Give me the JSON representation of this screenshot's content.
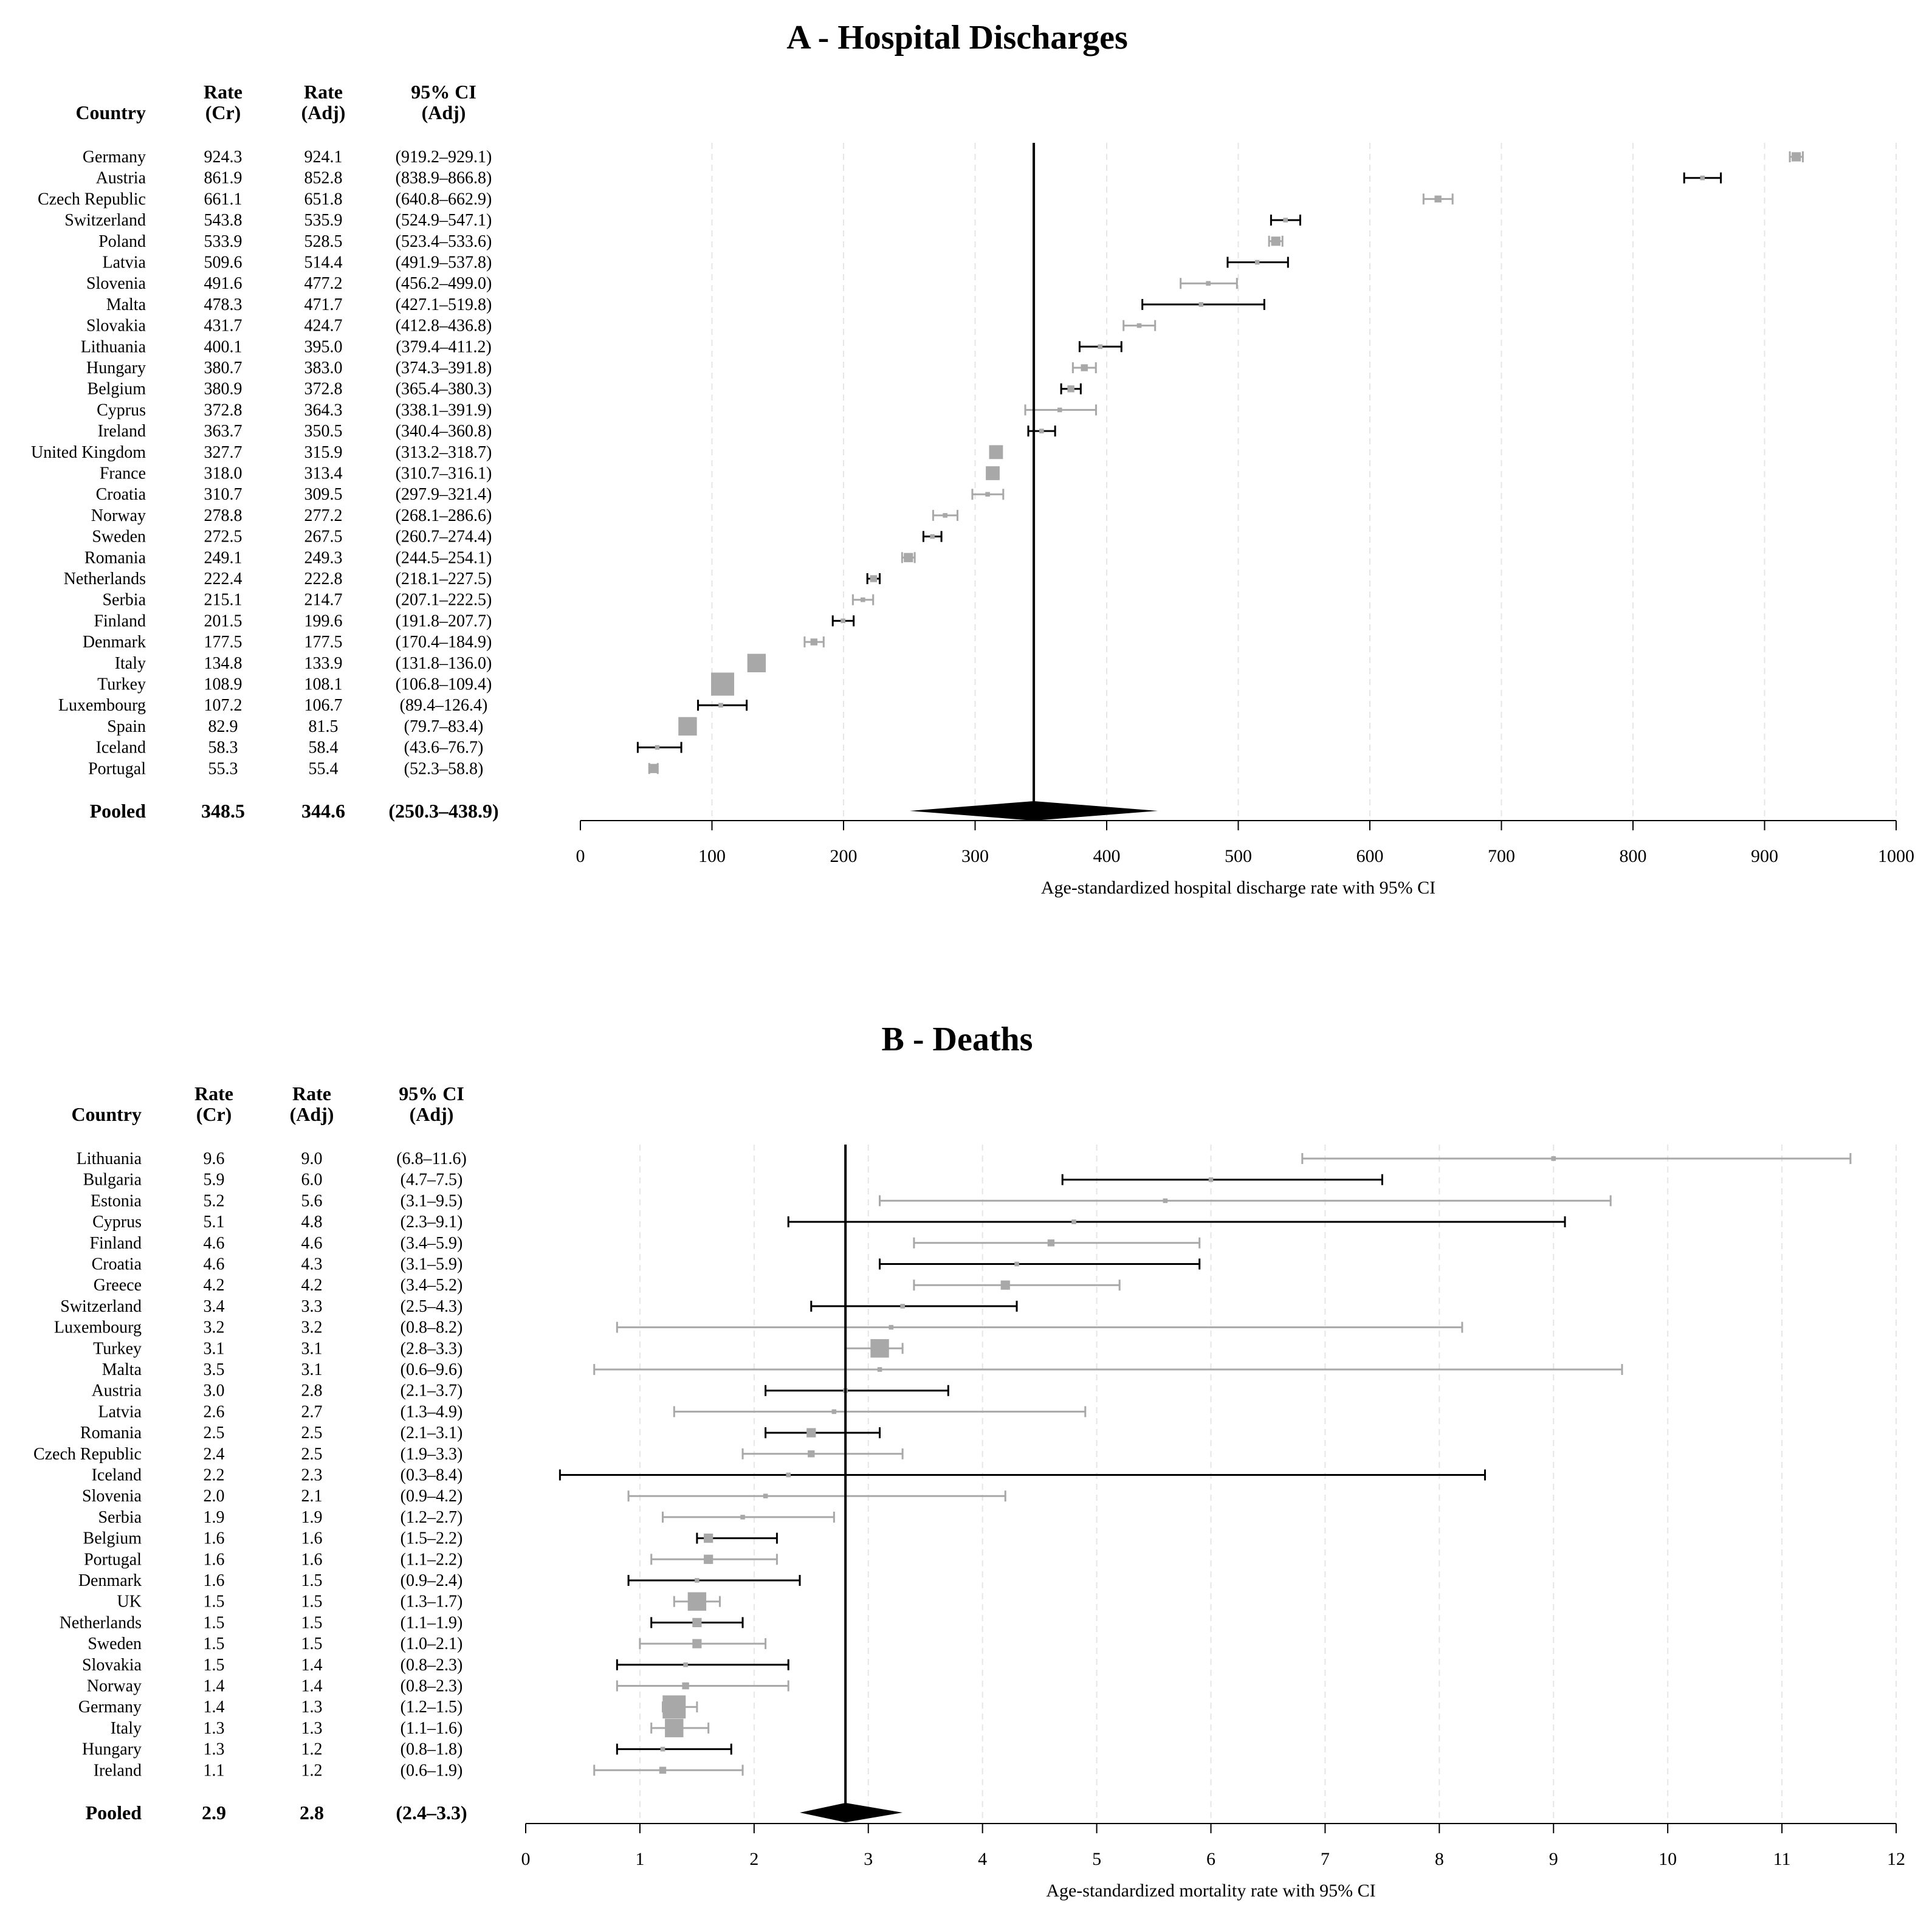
{
  "chart_data": [
    {
      "type": "forest",
      "title": "A - Hospital Discharges",
      "columns": {
        "country": "Country",
        "rate_cr": [
          "Rate",
          "(Cr)"
        ],
        "rate_adj": [
          "Rate",
          "(Adj)"
        ],
        "ci": [
          "95% CI",
          "(Adj)"
        ]
      },
      "xlabel": "Age-standardized hospital discharge rate with 95% CI",
      "xlim": [
        0,
        1000
      ],
      "ticks": [
        0,
        100,
        200,
        300,
        400,
        500,
        600,
        700,
        800,
        900,
        1000
      ],
      "rows": [
        {
          "country": "Germany",
          "cr": "924.3",
          "adj": "924.1",
          "ci": "(919.2–929.1)",
          "est": 924.1,
          "lo": 919.2,
          "hi": 929.1,
          "color": "gray",
          "size": 4
        },
        {
          "country": "Austria",
          "cr": "861.9",
          "adj": "852.8",
          "ci": "(838.9–866.8)",
          "est": 852.8,
          "lo": 838.9,
          "hi": 866.8,
          "color": "black",
          "size": 2
        },
        {
          "country": "Czech Republic",
          "cr": "661.1",
          "adj": "651.8",
          "ci": "(640.8–662.9)",
          "est": 651.8,
          "lo": 640.8,
          "hi": 662.9,
          "color": "gray",
          "size": 3
        },
        {
          "country": "Switzerland",
          "cr": "543.8",
          "adj": "535.9",
          "ci": "(524.9–547.1)",
          "est": 535.9,
          "lo": 524.9,
          "hi": 547.1,
          "color": "black",
          "size": 2
        },
        {
          "country": "Poland",
          "cr": "533.9",
          "adj": "528.5",
          "ci": "(523.4–533.6)",
          "est": 528.5,
          "lo": 523.4,
          "hi": 533.6,
          "color": "gray",
          "size": 4
        },
        {
          "country": "Latvia",
          "cr": "509.6",
          "adj": "514.4",
          "ci": "(491.9–537.8)",
          "est": 514.4,
          "lo": 491.9,
          "hi": 537.8,
          "color": "black",
          "size": 2
        },
        {
          "country": "Slovenia",
          "cr": "491.6",
          "adj": "477.2",
          "ci": "(456.2–499.0)",
          "est": 477.2,
          "lo": 456.2,
          "hi": 499.0,
          "color": "gray",
          "size": 2
        },
        {
          "country": "Malta",
          "cr": "478.3",
          "adj": "471.7",
          "ci": "(427.1–519.8)",
          "est": 471.7,
          "lo": 427.1,
          "hi": 519.8,
          "color": "black",
          "size": 2
        },
        {
          "country": "Slovakia",
          "cr": "431.7",
          "adj": "424.7",
          "ci": "(412.8–436.8)",
          "est": 424.7,
          "lo": 412.8,
          "hi": 436.8,
          "color": "gray",
          "size": 2
        },
        {
          "country": "Lithuania",
          "cr": "400.1",
          "adj": "395.0",
          "ci": "(379.4–411.2)",
          "est": 395.0,
          "lo": 379.4,
          "hi": 411.2,
          "color": "black",
          "size": 2
        },
        {
          "country": "Hungary",
          "cr": "380.7",
          "adj": "383.0",
          "ci": "(374.3–391.8)",
          "est": 383.0,
          "lo": 374.3,
          "hi": 391.8,
          "color": "gray",
          "size": 3
        },
        {
          "country": "Belgium",
          "cr": "380.9",
          "adj": "372.8",
          "ci": "(365.4–380.3)",
          "est": 372.8,
          "lo": 365.4,
          "hi": 380.3,
          "color": "black",
          "size": 3
        },
        {
          "country": "Cyprus",
          "cr": "372.8",
          "adj": "364.3",
          "ci": "(338.1–391.9)",
          "est": 364.3,
          "lo": 338.1,
          "hi": 391.9,
          "color": "gray",
          "size": 2
        },
        {
          "country": "Ireland",
          "cr": "363.7",
          "adj": "350.5",
          "ci": "(340.4–360.8)",
          "est": 350.5,
          "lo": 340.4,
          "hi": 360.8,
          "color": "black",
          "size": 2
        },
        {
          "country": "United Kingdom",
          "cr": "327.7",
          "adj": "315.9",
          "ci": "(313.2–318.7)",
          "est": 315.9,
          "lo": 313.2,
          "hi": 318.7,
          "color": "gray",
          "size": 6
        },
        {
          "country": "France",
          "cr": "318.0",
          "adj": "313.4",
          "ci": "(310.7–316.1)",
          "est": 313.4,
          "lo": 310.7,
          "hi": 316.1,
          "color": "black",
          "size": 6
        },
        {
          "country": "Croatia",
          "cr": "310.7",
          "adj": "309.5",
          "ci": "(297.9–321.4)",
          "est": 309.5,
          "lo": 297.9,
          "hi": 321.4,
          "color": "gray",
          "size": 2
        },
        {
          "country": "Norway",
          "cr": "278.8",
          "adj": "277.2",
          "ci": "(268.1–286.6)",
          "est": 277.2,
          "lo": 268.1,
          "hi": 286.6,
          "color": "gray",
          "size": 2
        },
        {
          "country": "Sweden",
          "cr": "272.5",
          "adj": "267.5",
          "ci": "(260.7–274.4)",
          "est": 267.5,
          "lo": 260.7,
          "hi": 274.4,
          "color": "black",
          "size": 2
        },
        {
          "country": "Romania",
          "cr": "249.1",
          "adj": "249.3",
          "ci": "(244.5–254.1)",
          "est": 249.3,
          "lo": 244.5,
          "hi": 254.1,
          "color": "gray",
          "size": 4
        },
        {
          "country": "Netherlands",
          "cr": "222.4",
          "adj": "222.8",
          "ci": "(218.1–227.5)",
          "est": 222.8,
          "lo": 218.1,
          "hi": 227.5,
          "color": "black",
          "size": 3
        },
        {
          "country": "Serbia",
          "cr": "215.1",
          "adj": "214.7",
          "ci": "(207.1–222.5)",
          "est": 214.7,
          "lo": 207.1,
          "hi": 222.5,
          "color": "gray",
          "size": 2
        },
        {
          "country": "Finland",
          "cr": "201.5",
          "adj": "199.6",
          "ci": "(191.8–207.7)",
          "est": 199.6,
          "lo": 191.8,
          "hi": 207.7,
          "color": "black",
          "size": 2
        },
        {
          "country": "Denmark",
          "cr": "177.5",
          "adj": "177.5",
          "ci": "(170.4–184.9)",
          "est": 177.5,
          "lo": 170.4,
          "hi": 184.9,
          "color": "gray",
          "size": 3
        },
        {
          "country": "Italy",
          "cr": "134.8",
          "adj": "133.9",
          "ci": "(131.8–136.0)",
          "est": 133.9,
          "lo": 131.8,
          "hi": 136.0,
          "color": "gray",
          "size": 8
        },
        {
          "country": "Turkey",
          "cr": "108.9",
          "adj": "108.1",
          "ci": "(106.8–109.4)",
          "est": 108.1,
          "lo": 106.8,
          "hi": 109.4,
          "color": "gray",
          "size": 10
        },
        {
          "country": "Luxembourg",
          "cr": "107.2",
          "adj": "106.7",
          "ci": "(89.4–126.4)",
          "est": 106.7,
          "lo": 89.4,
          "hi": 126.4,
          "color": "black",
          "size": 2
        },
        {
          "country": "Spain",
          "cr": "82.9",
          "adj": "81.5",
          "ci": "(79.7–83.4)",
          "est": 81.5,
          "lo": 79.7,
          "hi": 83.4,
          "color": "gray",
          "size": 8
        },
        {
          "country": "Iceland",
          "cr": "58.3",
          "adj": "58.4",
          "ci": "(43.6–76.7)",
          "est": 58.4,
          "lo": 43.6,
          "hi": 76.7,
          "color": "black",
          "size": 2
        },
        {
          "country": "Portugal",
          "cr": "55.3",
          "adj": "55.4",
          "ci": "(52.3–58.8)",
          "est": 55.4,
          "lo": 52.3,
          "hi": 58.8,
          "color": "gray",
          "size": 4
        }
      ],
      "pooled": {
        "label": "Pooled",
        "cr": "348.5",
        "adj": "344.6",
        "ci": "(250.3–438.9)",
        "est": 344.6,
        "lo": 250.3,
        "hi": 438.9
      }
    },
    {
      "type": "forest",
      "title": "B - Deaths",
      "columns": {
        "country": "Country",
        "rate_cr": [
          "Rate",
          "(Cr)"
        ],
        "rate_adj": [
          "Rate",
          "(Adj)"
        ],
        "ci": [
          "95% CI",
          "(Adj)"
        ]
      },
      "xlabel": "Age-standardized mortality rate with 95% CI",
      "xlim": [
        0,
        12
      ],
      "ticks": [
        0,
        1,
        2,
        3,
        4,
        5,
        6,
        7,
        8,
        9,
        10,
        11,
        12
      ],
      "rows": [
        {
          "country": "Lithuania",
          "cr": "9.6",
          "adj": "9.0",
          "ci": "(6.8–11.6)",
          "est": 9.0,
          "lo": 6.8,
          "hi": 11.6,
          "color": "gray",
          "size": 2
        },
        {
          "country": "Bulgaria",
          "cr": "5.9",
          "adj": "6.0",
          "ci": "(4.7–7.5)",
          "est": 6.0,
          "lo": 4.7,
          "hi": 7.5,
          "color": "black",
          "size": 2
        },
        {
          "country": "Estonia",
          "cr": "5.2",
          "adj": "5.6",
          "ci": "(3.1–9.5)",
          "est": 5.6,
          "lo": 3.1,
          "hi": 9.5,
          "color": "gray",
          "size": 2
        },
        {
          "country": "Cyprus",
          "cr": "5.1",
          "adj": "4.8",
          "ci": "(2.3–9.1)",
          "est": 4.8,
          "lo": 2.3,
          "hi": 9.1,
          "color": "black",
          "size": 2
        },
        {
          "country": "Finland",
          "cr": "4.6",
          "adj": "4.6",
          "ci": "(3.4–5.9)",
          "est": 4.6,
          "lo": 3.4,
          "hi": 5.9,
          "color": "gray",
          "size": 3
        },
        {
          "country": "Croatia",
          "cr": "4.6",
          "adj": "4.3",
          "ci": "(3.1–5.9)",
          "est": 4.3,
          "lo": 3.1,
          "hi": 5.9,
          "color": "black",
          "size": 2
        },
        {
          "country": "Greece",
          "cr": "4.2",
          "adj": "4.2",
          "ci": "(3.4–5.2)",
          "est": 4.2,
          "lo": 3.4,
          "hi": 5.2,
          "color": "gray",
          "size": 4
        },
        {
          "country": "Switzerland",
          "cr": "3.4",
          "adj": "3.3",
          "ci": "(2.5–4.3)",
          "est": 3.3,
          "lo": 2.5,
          "hi": 4.3,
          "color": "black",
          "size": 2
        },
        {
          "country": "Luxembourg",
          "cr": "3.2",
          "adj": "3.2",
          "ci": "(0.8–8.2)",
          "est": 3.2,
          "lo": 0.8,
          "hi": 8.2,
          "color": "gray",
          "size": 2
        },
        {
          "country": "Turkey",
          "cr": "3.1",
          "adj": "3.1",
          "ci": "(2.8–3.3)",
          "est": 3.1,
          "lo": 2.8,
          "hi": 3.3,
          "color": "gray",
          "size": 8
        },
        {
          "country": "Malta",
          "cr": "3.5",
          "adj": "3.1",
          "ci": "(0.6–9.6)",
          "est": 3.1,
          "lo": 0.6,
          "hi": 9.6,
          "color": "gray",
          "size": 2
        },
        {
          "country": "Austria",
          "cr": "3.0",
          "adj": "2.8",
          "ci": "(2.1–3.7)",
          "est": 2.8,
          "lo": 2.1,
          "hi": 3.7,
          "color": "black",
          "size": 2
        },
        {
          "country": "Latvia",
          "cr": "2.6",
          "adj": "2.7",
          "ci": "(1.3–4.9)",
          "est": 2.7,
          "lo": 1.3,
          "hi": 4.9,
          "color": "gray",
          "size": 2
        },
        {
          "country": "Romania",
          "cr": "2.5",
          "adj": "2.5",
          "ci": "(2.1–3.1)",
          "est": 2.5,
          "lo": 2.1,
          "hi": 3.1,
          "color": "black",
          "size": 4
        },
        {
          "country": "Czech Republic",
          "cr": "2.4",
          "adj": "2.5",
          "ci": "(1.9–3.3)",
          "est": 2.5,
          "lo": 1.9,
          "hi": 3.3,
          "color": "gray",
          "size": 3
        },
        {
          "country": "Iceland",
          "cr": "2.2",
          "adj": "2.3",
          "ci": "(0.3–8.4)",
          "est": 2.3,
          "lo": 0.3,
          "hi": 8.4,
          "color": "black",
          "size": 2
        },
        {
          "country": "Slovenia",
          "cr": "2.0",
          "adj": "2.1",
          "ci": "(0.9–4.2)",
          "est": 2.1,
          "lo": 0.9,
          "hi": 4.2,
          "color": "gray",
          "size": 2
        },
        {
          "country": "Serbia",
          "cr": "1.9",
          "adj": "1.9",
          "ci": "(1.2–2.7)",
          "est": 1.9,
          "lo": 1.2,
          "hi": 2.7,
          "color": "gray",
          "size": 2
        },
        {
          "country": "Belgium",
          "cr": "1.6",
          "adj": "1.6",
          "ci": "(1.5–2.2)",
          "est": 1.6,
          "lo": 1.5,
          "hi": 2.2,
          "color": "black",
          "size": 4
        },
        {
          "country": "Portugal",
          "cr": "1.6",
          "adj": "1.6",
          "ci": "(1.1–2.2)",
          "est": 1.6,
          "lo": 1.1,
          "hi": 2.2,
          "color": "gray",
          "size": 4
        },
        {
          "country": "Denmark",
          "cr": "1.6",
          "adj": "1.5",
          "ci": "(0.9–2.4)",
          "est": 1.5,
          "lo": 0.9,
          "hi": 2.4,
          "color": "black",
          "size": 2
        },
        {
          "country": "UK",
          "cr": "1.5",
          "adj": "1.5",
          "ci": "(1.3–1.7)",
          "est": 1.5,
          "lo": 1.3,
          "hi": 1.7,
          "color": "gray",
          "size": 8
        },
        {
          "country": "Netherlands",
          "cr": "1.5",
          "adj": "1.5",
          "ci": "(1.1–1.9)",
          "est": 1.5,
          "lo": 1.1,
          "hi": 1.9,
          "color": "black",
          "size": 4
        },
        {
          "country": "Sweden",
          "cr": "1.5",
          "adj": "1.5",
          "ci": "(1.0–2.1)",
          "est": 1.5,
          "lo": 1.0,
          "hi": 2.1,
          "color": "gray",
          "size": 4
        },
        {
          "country": "Slovakia",
          "cr": "1.5",
          "adj": "1.4",
          "ci": "(0.8–2.3)",
          "est": 1.4,
          "lo": 0.8,
          "hi": 2.3,
          "color": "black",
          "size": 2
        },
        {
          "country": "Norway",
          "cr": "1.4",
          "adj": "1.4",
          "ci": "(0.8–2.3)",
          "est": 1.4,
          "lo": 0.8,
          "hi": 2.3,
          "color": "gray",
          "size": 3
        },
        {
          "country": "Germany",
          "cr": "1.4",
          "adj": "1.3",
          "ci": "(1.2–1.5)",
          "est": 1.3,
          "lo": 1.2,
          "hi": 1.5,
          "color": "gray",
          "size": 10
        },
        {
          "country": "Italy",
          "cr": "1.3",
          "adj": "1.3",
          "ci": "(1.1–1.6)",
          "est": 1.3,
          "lo": 1.1,
          "hi": 1.6,
          "color": "gray",
          "size": 8
        },
        {
          "country": "Hungary",
          "cr": "1.3",
          "adj": "1.2",
          "ci": "(0.8–1.8)",
          "est": 1.2,
          "lo": 0.8,
          "hi": 1.8,
          "color": "black",
          "size": 2
        },
        {
          "country": "Ireland",
          "cr": "1.1",
          "adj": "1.2",
          "ci": "(0.6–1.9)",
          "est": 1.2,
          "lo": 0.6,
          "hi": 1.9,
          "color": "gray",
          "size": 3
        }
      ],
      "pooled": {
        "label": "Pooled",
        "cr": "2.9",
        "adj": "2.8",
        "ci": "(2.4–3.3)",
        "est": 2.8,
        "lo": 2.4,
        "hi": 3.3
      }
    }
  ]
}
